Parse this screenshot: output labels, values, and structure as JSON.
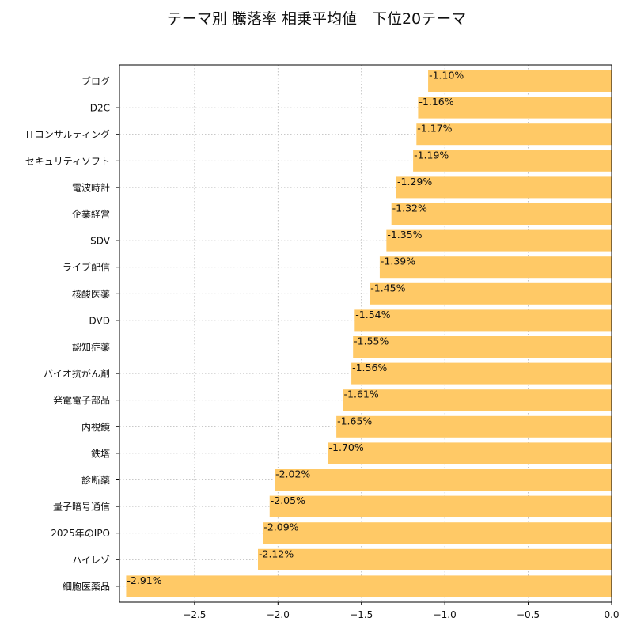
{
  "chart_data": {
    "type": "bar",
    "orientation": "horizontal",
    "title": "テーマ別 騰落率 相乗平均値　下位20テーマ",
    "xlabel": "",
    "ylabel": "",
    "xlim": [
      -2.95,
      0.0
    ],
    "xticks": [
      -2.5,
      -2.0,
      -1.5,
      -1.0,
      -0.5,
      0.0
    ],
    "xtick_labels": [
      "−2.5",
      "−2.0",
      "−1.5",
      "−1.0",
      "−0.5",
      "0.0"
    ],
    "grid": true,
    "bar_color": "#ffc966",
    "categories": [
      "ブログ",
      "D2C",
      "ITコンサルティング",
      "セキュリティソフト",
      "電波時計",
      "企業経営",
      "SDV",
      "ライブ配信",
      "核酸医薬",
      "DVD",
      "認知症薬",
      "バイオ抗がん剤",
      "発電電子部品",
      "内視鏡",
      "鉄塔",
      "診断薬",
      "量子暗号通信",
      "2025年のIPO",
      "ハイレゾ",
      "細胞医薬品"
    ],
    "values": [
      -1.1,
      -1.16,
      -1.17,
      -1.19,
      -1.29,
      -1.32,
      -1.35,
      -1.39,
      -1.45,
      -1.54,
      -1.55,
      -1.56,
      -1.61,
      -1.65,
      -1.7,
      -2.02,
      -2.05,
      -2.09,
      -2.12,
      -2.91
    ],
    "data_labels": [
      "-1.10%",
      "-1.16%",
      "-1.17%",
      "-1.19%",
      "-1.29%",
      "-1.32%",
      "-1.35%",
      "-1.39%",
      "-1.45%",
      "-1.54%",
      "-1.55%",
      "-1.56%",
      "-1.61%",
      "-1.65%",
      "-1.70%",
      "-2.02%",
      "-2.05%",
      "-2.09%",
      "-2.12%",
      "-2.91%"
    ]
  }
}
